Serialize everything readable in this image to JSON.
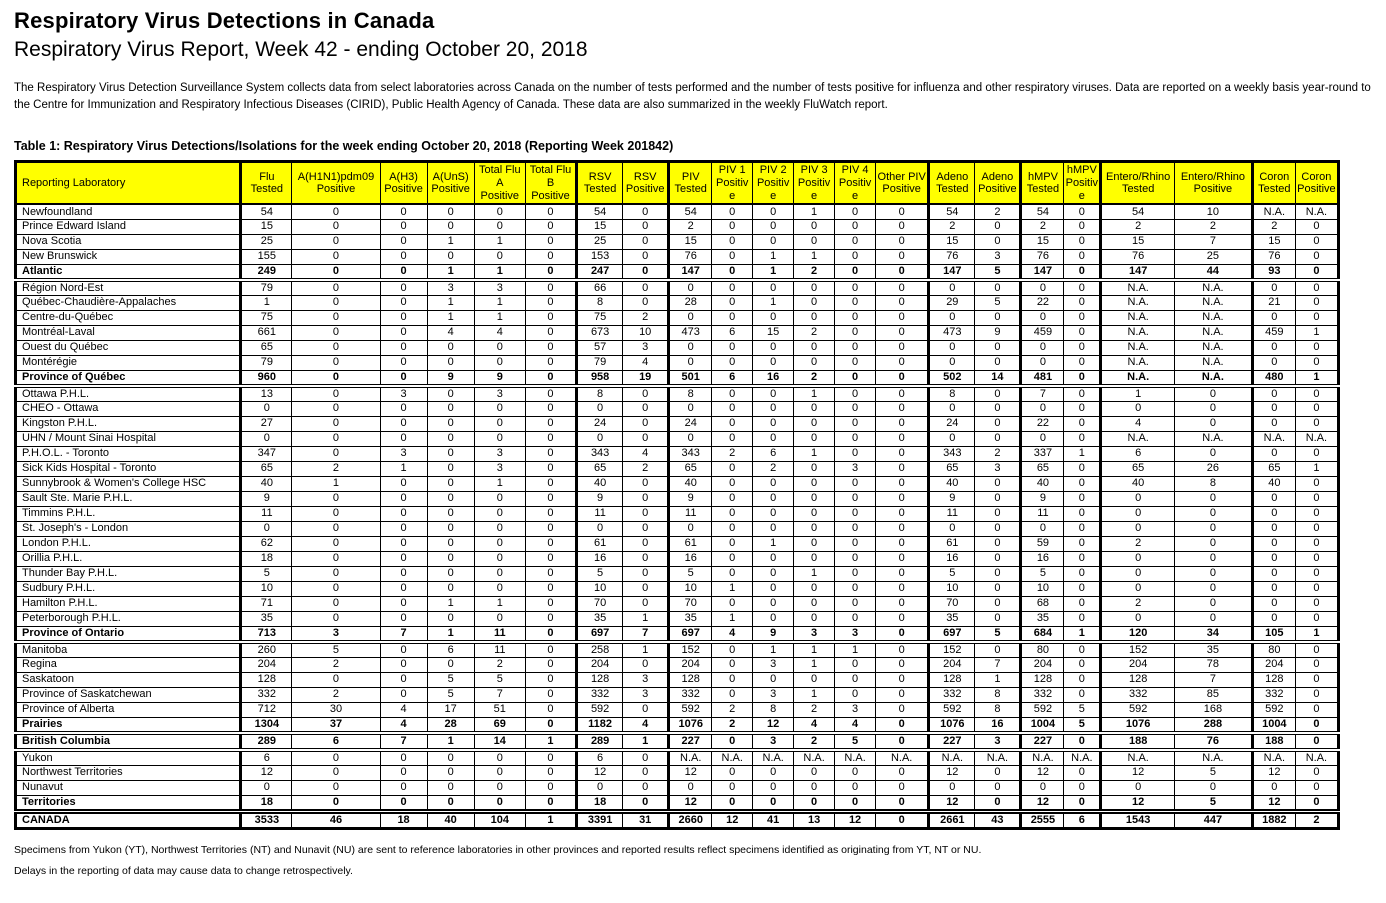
{
  "page": {
    "title": "Respiratory Virus Detections in Canada",
    "subtitle": "Respiratory Virus Report, Week 42 - ending October 20, 2018",
    "description": "The Respiratory Virus Detection Surveillance System collects data from select laboratories across Canada on the number of tests performed and the number of tests positive for influenza and other respiratory viruses. Data are reported on a weekly basis year-round to the Centre for Immunization and Respiratory Infectious Diseases (CIRID), Public Health Agency of Canada. These data are also summarized in the weekly FluWatch report."
  },
  "table": {
    "title": "Table 1: Respiratory Virus Detections/Isolations for the week ending October 20, 2018 (Reporting Week 201842)",
    "header_bg": "#FFFF00",
    "columns": [
      "Reporting Laboratory",
      "Flu Tested",
      "A(H1N1)pdm09 Positive",
      "A(H3) Positive",
      "A(UnS) Positive",
      "Total Flu A Positive",
      "Total Flu B Positive",
      "RSV Tested",
      "RSV Positive",
      "PIV Tested",
      "PIV 1 Positive",
      "PIV 2 Positive",
      "PIV 3 Positive",
      "PIV 4 Positive",
      "Other PIV Positive",
      "Adeno Tested",
      "Adeno Positive",
      "hMPV Tested",
      "hMPV Positive",
      "Entero/Rhino Tested",
      "Entero/Rhino Positive",
      "Coron Tested",
      "Coron Positive"
    ],
    "rows": [
      {
        "label": "Newfoundland",
        "values": [
          "54",
          "0",
          "0",
          "0",
          "0",
          "0",
          "54",
          "0",
          "54",
          "0",
          "0",
          "1",
          "0",
          "0",
          "54",
          "2",
          "54",
          "0",
          "54",
          "10",
          "N.A.",
          "N.A."
        ]
      },
      {
        "label": "Prince Edward Island",
        "values": [
          "15",
          "0",
          "0",
          "0",
          "0",
          "0",
          "15",
          "0",
          "2",
          "0",
          "0",
          "0",
          "0",
          "0",
          "2",
          "0",
          "2",
          "0",
          "2",
          "2",
          "2",
          "0"
        ]
      },
      {
        "label": "Nova Scotia",
        "values": [
          "25",
          "0",
          "0",
          "1",
          "1",
          "0",
          "25",
          "0",
          "15",
          "0",
          "0",
          "0",
          "0",
          "0",
          "15",
          "0",
          "15",
          "0",
          "15",
          "7",
          "15",
          "0"
        ]
      },
      {
        "label": "New Brunswick",
        "values": [
          "155",
          "0",
          "0",
          "0",
          "0",
          "0",
          "153",
          "0",
          "76",
          "0",
          "1",
          "1",
          "0",
          "0",
          "76",
          "3",
          "76",
          "0",
          "76",
          "25",
          "76",
          "0"
        ]
      },
      {
        "label": "Atlantic",
        "bold": true,
        "section_end": true,
        "values": [
          "249",
          "0",
          "0",
          "1",
          "1",
          "0",
          "247",
          "0",
          "147",
          "0",
          "1",
          "2",
          "0",
          "0",
          "147",
          "5",
          "147",
          "0",
          "147",
          "44",
          "93",
          "0"
        ]
      },
      {
        "label": "Région Nord-Est",
        "values": [
          "79",
          "0",
          "0",
          "3",
          "3",
          "0",
          "66",
          "0",
          "0",
          "0",
          "0",
          "0",
          "0",
          "0",
          "0",
          "0",
          "0",
          "0",
          "N.A.",
          "N.A.",
          "0",
          "0"
        ]
      },
      {
        "label": "Québec-Chaudière-Appalaches",
        "values": [
          "1",
          "0",
          "0",
          "1",
          "1",
          "0",
          "8",
          "0",
          "28",
          "0",
          "1",
          "0",
          "0",
          "0",
          "29",
          "5",
          "22",
          "0",
          "N.A.",
          "N.A.",
          "21",
          "0"
        ]
      },
      {
        "label": "Centre-du-Québec",
        "values": [
          "75",
          "0",
          "0",
          "1",
          "1",
          "0",
          "75",
          "2",
          "0",
          "0",
          "0",
          "0",
          "0",
          "0",
          "0",
          "0",
          "0",
          "0",
          "N.A.",
          "N.A.",
          "0",
          "0"
        ]
      },
      {
        "label": "Montréal-Laval",
        "values": [
          "661",
          "0",
          "0",
          "4",
          "4",
          "0",
          "673",
          "10",
          "473",
          "6",
          "15",
          "2",
          "0",
          "0",
          "473",
          "9",
          "459",
          "0",
          "N.A.",
          "N.A.",
          "459",
          "1"
        ]
      },
      {
        "label": "Ouest du Québec",
        "values": [
          "65",
          "0",
          "0",
          "0",
          "0",
          "0",
          "57",
          "3",
          "0",
          "0",
          "0",
          "0",
          "0",
          "0",
          "0",
          "0",
          "0",
          "0",
          "N.A.",
          "N.A.",
          "0",
          "0"
        ]
      },
      {
        "label": "Montérégie",
        "values": [
          "79",
          "0",
          "0",
          "0",
          "0",
          "0",
          "79",
          "4",
          "0",
          "0",
          "0",
          "0",
          "0",
          "0",
          "0",
          "0",
          "0",
          "0",
          "N.A.",
          "N.A.",
          "0",
          "0"
        ]
      },
      {
        "label": "Province of Québec",
        "bold": true,
        "section_end": true,
        "values": [
          "960",
          "0",
          "0",
          "9",
          "9",
          "0",
          "958",
          "19",
          "501",
          "6",
          "16",
          "2",
          "0",
          "0",
          "502",
          "14",
          "481",
          "0",
          "N.A.",
          "N.A.",
          "480",
          "1"
        ]
      },
      {
        "label": "Ottawa P.H.L.",
        "values": [
          "13",
          "0",
          "3",
          "0",
          "3",
          "0",
          "8",
          "0",
          "8",
          "0",
          "0",
          "1",
          "0",
          "0",
          "8",
          "0",
          "7",
          "0",
          "1",
          "0",
          "0",
          "0"
        ]
      },
      {
        "label": "CHEO - Ottawa",
        "values": [
          "0",
          "0",
          "0",
          "0",
          "0",
          "0",
          "0",
          "0",
          "0",
          "0",
          "0",
          "0",
          "0",
          "0",
          "0",
          "0",
          "0",
          "0",
          "0",
          "0",
          "0",
          "0"
        ]
      },
      {
        "label": "Kingston P.H.L.",
        "values": [
          "27",
          "0",
          "0",
          "0",
          "0",
          "0",
          "24",
          "0",
          "24",
          "0",
          "0",
          "0",
          "0",
          "0",
          "24",
          "0",
          "22",
          "0",
          "4",
          "0",
          "0",
          "0"
        ]
      },
      {
        "label": "UHN / Mount Sinai Hospital",
        "values": [
          "0",
          "0",
          "0",
          "0",
          "0",
          "0",
          "0",
          "0",
          "0",
          "0",
          "0",
          "0",
          "0",
          "0",
          "0",
          "0",
          "0",
          "0",
          "N.A.",
          "N.A.",
          "N.A.",
          "N.A."
        ]
      },
      {
        "label": "P.H.O.L. - Toronto",
        "values": [
          "347",
          "0",
          "3",
          "0",
          "3",
          "0",
          "343",
          "4",
          "343",
          "2",
          "6",
          "1",
          "0",
          "0",
          "343",
          "2",
          "337",
          "1",
          "6",
          "0",
          "0",
          "0"
        ]
      },
      {
        "label": "Sick Kids Hospital - Toronto",
        "values": [
          "65",
          "2",
          "1",
          "0",
          "3",
          "0",
          "65",
          "2",
          "65",
          "0",
          "2",
          "0",
          "3",
          "0",
          "65",
          "3",
          "65",
          "0",
          "65",
          "26",
          "65",
          "1"
        ]
      },
      {
        "label": "Sunnybrook & Women's College HSC",
        "values": [
          "40",
          "1",
          "0",
          "0",
          "1",
          "0",
          "40",
          "0",
          "40",
          "0",
          "0",
          "0",
          "0",
          "0",
          "40",
          "0",
          "40",
          "0",
          "40",
          "8",
          "40",
          "0"
        ]
      },
      {
        "label": "Sault Ste. Marie P.H.L.",
        "values": [
          "9",
          "0",
          "0",
          "0",
          "0",
          "0",
          "9",
          "0",
          "9",
          "0",
          "0",
          "0",
          "0",
          "0",
          "9",
          "0",
          "9",
          "0",
          "0",
          "0",
          "0",
          "0"
        ]
      },
      {
        "label": "Timmins P.H.L.",
        "values": [
          "11",
          "0",
          "0",
          "0",
          "0",
          "0",
          "11",
          "0",
          "11",
          "0",
          "0",
          "0",
          "0",
          "0",
          "11",
          "0",
          "11",
          "0",
          "0",
          "0",
          "0",
          "0"
        ]
      },
      {
        "label": "St. Joseph's - London",
        "values": [
          "0",
          "0",
          "0",
          "0",
          "0",
          "0",
          "0",
          "0",
          "0",
          "0",
          "0",
          "0",
          "0",
          "0",
          "0",
          "0",
          "0",
          "0",
          "0",
          "0",
          "0",
          "0"
        ]
      },
      {
        "label": "London P.H.L.",
        "values": [
          "62",
          "0",
          "0",
          "0",
          "0",
          "0",
          "61",
          "0",
          "61",
          "0",
          "1",
          "0",
          "0",
          "0",
          "61",
          "0",
          "59",
          "0",
          "2",
          "0",
          "0",
          "0"
        ]
      },
      {
        "label": "Orillia P.H.L.",
        "values": [
          "18",
          "0",
          "0",
          "0",
          "0",
          "0",
          "16",
          "0",
          "16",
          "0",
          "0",
          "0",
          "0",
          "0",
          "16",
          "0",
          "16",
          "0",
          "0",
          "0",
          "0",
          "0"
        ]
      },
      {
        "label": "Thunder Bay P.H.L.",
        "values": [
          "5",
          "0",
          "0",
          "0",
          "0",
          "0",
          "5",
          "0",
          "5",
          "0",
          "0",
          "1",
          "0",
          "0",
          "5",
          "0",
          "5",
          "0",
          "0",
          "0",
          "0",
          "0"
        ]
      },
      {
        "label": "Sudbury P.H.L.",
        "values": [
          "10",
          "0",
          "0",
          "0",
          "0",
          "0",
          "10",
          "0",
          "10",
          "1",
          "0",
          "0",
          "0",
          "0",
          "10",
          "0",
          "10",
          "0",
          "0",
          "0",
          "0",
          "0"
        ]
      },
      {
        "label": "Hamilton P.H.L.",
        "values": [
          "71",
          "0",
          "0",
          "1",
          "1",
          "0",
          "70",
          "0",
          "70",
          "0",
          "0",
          "0",
          "0",
          "0",
          "70",
          "0",
          "68",
          "0",
          "2",
          "0",
          "0",
          "0"
        ]
      },
      {
        "label": "Peterborough P.H.L.",
        "values": [
          "35",
          "0",
          "0",
          "0",
          "0",
          "0",
          "35",
          "1",
          "35",
          "1",
          "0",
          "0",
          "0",
          "0",
          "35",
          "0",
          "35",
          "0",
          "0",
          "0",
          "0",
          "0"
        ]
      },
      {
        "label": "Province of Ontario",
        "bold": true,
        "section_end": true,
        "values": [
          "713",
          "3",
          "7",
          "1",
          "11",
          "0",
          "697",
          "7",
          "697",
          "4",
          "9",
          "3",
          "3",
          "0",
          "697",
          "5",
          "684",
          "1",
          "120",
          "34",
          "105",
          "1"
        ]
      },
      {
        "label": "Manitoba",
        "values": [
          "260",
          "5",
          "0",
          "6",
          "11",
          "0",
          "258",
          "1",
          "152",
          "0",
          "1",
          "1",
          "1",
          "0",
          "152",
          "0",
          "80",
          "0",
          "152",
          "35",
          "80",
          "0"
        ]
      },
      {
        "label": "Regina",
        "values": [
          "204",
          "2",
          "0",
          "0",
          "2",
          "0",
          "204",
          "0",
          "204",
          "0",
          "3",
          "1",
          "0",
          "0",
          "204",
          "7",
          "204",
          "0",
          "204",
          "78",
          "204",
          "0"
        ]
      },
      {
        "label": "Saskatoon",
        "values": [
          "128",
          "0",
          "0",
          "5",
          "5",
          "0",
          "128",
          "3",
          "128",
          "0",
          "0",
          "0",
          "0",
          "0",
          "128",
          "1",
          "128",
          "0",
          "128",
          "7",
          "128",
          "0"
        ]
      },
      {
        "label": "Province of Saskatchewan",
        "values": [
          "332",
          "2",
          "0",
          "5",
          "7",
          "0",
          "332",
          "3",
          "332",
          "0",
          "3",
          "1",
          "0",
          "0",
          "332",
          "8",
          "332",
          "0",
          "332",
          "85",
          "332",
          "0"
        ]
      },
      {
        "label": "Province of Alberta",
        "values": [
          "712",
          "30",
          "4",
          "17",
          "51",
          "0",
          "592",
          "0",
          "592",
          "2",
          "8",
          "2",
          "3",
          "0",
          "592",
          "8",
          "592",
          "5",
          "592",
          "168",
          "592",
          "0"
        ]
      },
      {
        "label": "Prairies",
        "bold": true,
        "section_end": true,
        "values": [
          "1304",
          "37",
          "4",
          "28",
          "69",
          "0",
          "1182",
          "4",
          "1076",
          "2",
          "12",
          "4",
          "4",
          "0",
          "1076",
          "16",
          "1004",
          "5",
          "1076",
          "288",
          "1004",
          "0"
        ]
      },
      {
        "label": "British Columbia",
        "bold": true,
        "section_end": true,
        "values": [
          "289",
          "6",
          "7",
          "1",
          "14",
          "1",
          "289",
          "1",
          "227",
          "0",
          "3",
          "2",
          "5",
          "0",
          "227",
          "3",
          "227",
          "0",
          "188",
          "76",
          "188",
          "0"
        ]
      },
      {
        "label": "Yukon",
        "values": [
          "6",
          "0",
          "0",
          "0",
          "0",
          "0",
          "6",
          "0",
          "N.A.",
          "N.A.",
          "N.A.",
          "N.A.",
          "N.A.",
          "N.A.",
          "N.A.",
          "N.A.",
          "N.A.",
          "N.A.",
          "N.A.",
          "N.A.",
          "N.A.",
          "N.A."
        ]
      },
      {
        "label": "Northwest Territories",
        "values": [
          "12",
          "0",
          "0",
          "0",
          "0",
          "0",
          "12",
          "0",
          "12",
          "0",
          "0",
          "0",
          "0",
          "0",
          "12",
          "0",
          "12",
          "0",
          "12",
          "5",
          "12",
          "0"
        ]
      },
      {
        "label": "Nunavut",
        "values": [
          "0",
          "0",
          "0",
          "0",
          "0",
          "0",
          "0",
          "0",
          "0",
          "0",
          "0",
          "0",
          "0",
          "0",
          "0",
          "0",
          "0",
          "0",
          "0",
          "0",
          "0",
          "0"
        ]
      },
      {
        "label": "Territories",
        "bold": true,
        "section_end": true,
        "values": [
          "18",
          "0",
          "0",
          "0",
          "0",
          "0",
          "18",
          "0",
          "12",
          "0",
          "0",
          "0",
          "0",
          "0",
          "12",
          "0",
          "12",
          "0",
          "12",
          "5",
          "12",
          "0"
        ]
      },
      {
        "label": "CANADA",
        "bold": true,
        "grand_total": true,
        "values": [
          "3533",
          "46",
          "18",
          "40",
          "104",
          "1",
          "3391",
          "31",
          "2660",
          "12",
          "41",
          "13",
          "12",
          "0",
          "2661",
          "43",
          "2555",
          "6",
          "1543",
          "447",
          "1882",
          "2"
        ]
      }
    ]
  },
  "footnotes": [
    "Specimens from Yukon (YT), Northwest Territories (NT) and Nunavit (NU) are sent to reference laboratories in other provinces and reported results reflect specimens identified as originating from  YT, NT or NU.",
    "Delays in the reporting of data may cause data to change retrospectively."
  ]
}
